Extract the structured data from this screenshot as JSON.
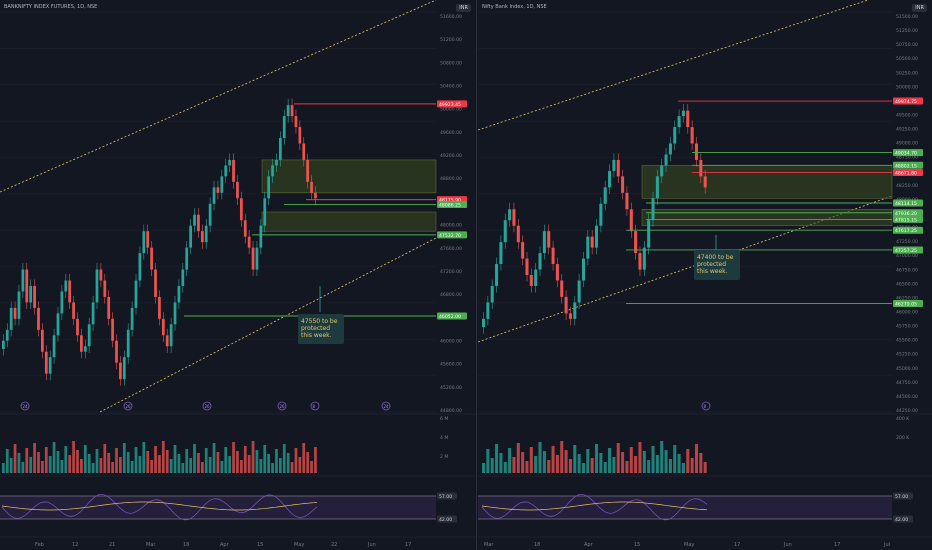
{
  "colors": {
    "background": "#131722",
    "grid": "#1f2430",
    "up": "#26a69a",
    "down": "#ef5350",
    "line_red": "#f23645",
    "line_green": "#4caf50",
    "trend": "#e3c66a",
    "zone_fill": "#3b4a1f",
    "rsi_line": "#7e57c2",
    "rsi_ma": "#e3c66a",
    "rsi_band": "#241f3b",
    "annotation_bg": "#1d3a3f",
    "annotation_text": "#e3c66a"
  },
  "chart_data": [
    {
      "type": "candlestick",
      "title": "BANKNIFTY INDEX FUTURES, 1D, NSE",
      "currency": "INR",
      "ylim": [
        44300,
        51600
      ],
      "y_ticks": [
        "51600.00",
        "51200.00",
        "50800.00",
        "50400.00",
        "50000.00",
        "49600.00",
        "49200.00",
        "48800.00",
        "48400.00",
        "48000.00",
        "47600.00",
        "47200.00",
        "46800.00",
        "46400.00",
        "46000.00",
        "45600.00",
        "45200.00",
        "44800.00"
      ],
      "x_ticks": [
        "Feb",
        "12",
        "21",
        "Mar",
        "18",
        "Apr",
        "15",
        "May",
        "22",
        "Jun",
        "17"
      ],
      "close_series": [
        45600,
        45800,
        46200,
        46000,
        46500,
        46900,
        46300,
        46600,
        46200,
        45800,
        45400,
        45000,
        45300,
        45700,
        46100,
        46500,
        46700,
        46300,
        46000,
        45700,
        45400,
        45500,
        45900,
        46300,
        46900,
        46700,
        46400,
        46000,
        45600,
        45200,
        44900,
        45300,
        45800,
        46200,
        46700,
        47200,
        47600,
        47300,
        46900,
        46400,
        46000,
        45700,
        45500,
        45900,
        46300,
        46600,
        46900,
        47300,
        47700,
        47900,
        47600,
        47400,
        47700,
        48100,
        48400,
        48300,
        48600,
        48800,
        48900,
        48500,
        48200,
        47800,
        47500,
        47300,
        46900,
        47300,
        47700,
        48200,
        48600,
        48800,
        48900,
        49300,
        49700,
        49900,
        49700,
        49500,
        49200,
        48900,
        48500,
        48300,
        48200
      ],
      "levels": [
        {
          "label": "49923.45",
          "value": 49923.45,
          "color": "red"
        },
        {
          "label": "48175.90",
          "value": 48175.9,
          "color": "red"
        },
        {
          "label": "48086.25",
          "value": 48086.25,
          "color": "green"
        },
        {
          "label": "47532.70",
          "value": 47532.7,
          "color": "green"
        },
        {
          "label": "46052.00",
          "value": 46052,
          "color": "green"
        }
      ],
      "zones": [
        [
          48300,
          48900
        ],
        [
          47600,
          47950
        ]
      ],
      "annotation": [
        "47550 to be",
        "protected",
        "this week."
      ],
      "volume_ticks": [
        "6 M",
        "4 M",
        "2 M"
      ],
      "rsi_levels": [
        "57.00",
        "42.00"
      ],
      "circle_markers": [
        "24",
        "26",
        "26",
        "26",
        "8",
        "24"
      ]
    },
    {
      "type": "candlestick",
      "title": "Nifty Bank Index, 1D, NSE",
      "currency": "INR",
      "ylim": [
        44300,
        51600
      ],
      "y_ticks": [
        "51500.00",
        "51250.00",
        "50750.00",
        "50500.00",
        "50250.00",
        "50000.00",
        "49750.00",
        "49500.00",
        "49250.00",
        "49000.00",
        "48750.00",
        "48500.00",
        "48250.00",
        "48000.00",
        "47750.00",
        "47500.00",
        "47250.00",
        "47000.00",
        "46750.00",
        "46500.00",
        "46250.00",
        "46000.00",
        "45750.00",
        "45500.00",
        "45250.00",
        "45000.00",
        "44750.00",
        "44500.00",
        "44250.00"
      ],
      "x_ticks": [
        "Mar",
        "18",
        "Apr",
        "15",
        "May",
        "17",
        "Jun",
        "17",
        "Jul"
      ],
      "close_series": [
        46000,
        46300,
        46600,
        47000,
        47400,
        47800,
        48000,
        47700,
        47400,
        47100,
        46800,
        46600,
        46900,
        47200,
        47600,
        47300,
        47000,
        46700,
        46400,
        46100,
        46000,
        46300,
        46700,
        47100,
        47500,
        47300,
        47700,
        48100,
        48400,
        48700,
        48900,
        48600,
        48300,
        48000,
        47600,
        47200,
        46900,
        47300,
        47800,
        48200,
        48600,
        48800,
        49000,
        49200,
        49500,
        49700,
        49800,
        49500,
        49200,
        48900,
        48600,
        48400
      ],
      "levels": [
        {
          "label": "49974.75",
          "value": 49974.75,
          "color": "red"
        },
        {
          "label": "49034.70",
          "value": 49034.7,
          "color": "green"
        },
        {
          "label": "48802.15",
          "value": 48802.15,
          "color": "green"
        },
        {
          "label": "48671.80",
          "value": 48671.8,
          "color": "red"
        },
        {
          "label": "48114.15",
          "value": 48114.15,
          "color": "green"
        },
        {
          "label": "47936.20",
          "value": 47936.2,
          "color": "green"
        },
        {
          "label": "47815.15",
          "value": 47815.15,
          "color": "green"
        },
        {
          "label": "47617.25",
          "value": 47617.25,
          "color": "green"
        },
        {
          "label": "47257.25",
          "value": 47257.25,
          "color": "green"
        },
        {
          "label": "46279.05",
          "value": 46279.05,
          "color": "green"
        }
      ],
      "zones": [
        [
          48200,
          48800
        ],
        [
          47700,
          48000
        ]
      ],
      "annotation": [
        "47400 to be",
        "protected",
        "this week."
      ],
      "volume_ticks": [
        "400 K",
        "200 K"
      ],
      "rsi_levels": [
        "57.00",
        "42.00"
      ],
      "circle_markers": [
        "8"
      ]
    }
  ]
}
